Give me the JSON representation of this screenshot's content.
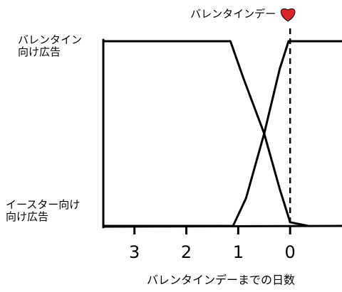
{
  "chart_data": {
    "type": "line",
    "annotation": {
      "text": "バレンタインデー",
      "x": 0
    },
    "x_label": "バレンタインデーまでの日数",
    "xlim": [
      3.6,
      -1
    ],
    "xticks": [
      3,
      2,
      1,
      0
    ],
    "ylim": [
      0,
      1
    ],
    "yticks": [
      {
        "value": 0,
        "label": "イースター向け\n向け広告"
      },
      {
        "value": 1,
        "label": "バレンタイン\n向け広告"
      }
    ],
    "series": [
      {
        "color": "#000000",
        "x": [
          3.6,
          1.15,
          0.9,
          0.5,
          0.2,
          0,
          -0.35
        ],
        "values": [
          1,
          1,
          0.8,
          0.5,
          0.2,
          0.02,
          0
        ]
      },
      {
        "color": "#000000",
        "x": [
          3.6,
          1.1,
          0.85,
          0.5,
          0.2,
          0.03,
          -1
        ],
        "values": [
          0,
          0,
          0.15,
          0.5,
          0.85,
          1,
          1
        ]
      }
    ]
  }
}
